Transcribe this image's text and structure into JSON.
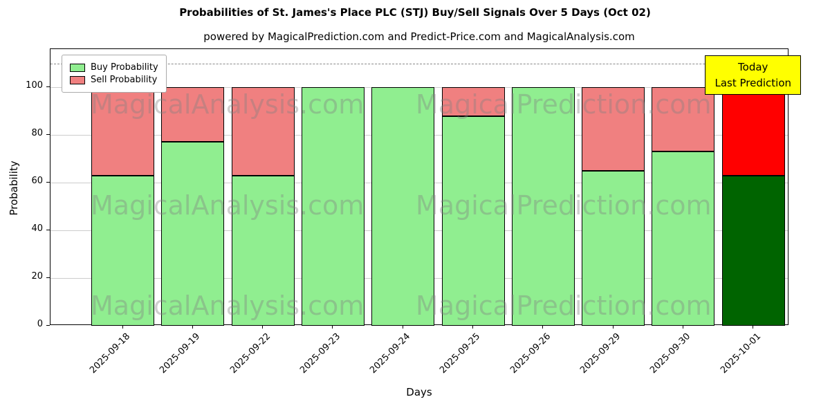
{
  "chart_data": {
    "type": "bar",
    "stacked": true,
    "title": "Probabilities of St. James's Place PLC (STJ) Buy/Sell Signals Over 5 Days (Oct 02)",
    "subtitle": "powered by MagicalPrediction.com and Predict-Price.com and MagicalAnalysis.com",
    "xlabel": "Days",
    "ylabel": "Probability",
    "categories": [
      "2025-09-18",
      "2025-09-19",
      "2025-09-22",
      "2025-09-23",
      "2025-09-24",
      "2025-09-25",
      "2025-09-26",
      "2025-09-29",
      "2025-09-30",
      "2025-10-01"
    ],
    "series": [
      {
        "name": "Buy Probability",
        "color": "#90EE90",
        "values": [
          63,
          77,
          63,
          100,
          100,
          88,
          100,
          65,
          73,
          63
        ],
        "bar_colors": [
          "#90EE90",
          "#90EE90",
          "#90EE90",
          "#90EE90",
          "#90EE90",
          "#90EE90",
          "#90EE90",
          "#90EE90",
          "#90EE90",
          "#006400"
        ]
      },
      {
        "name": "Sell Probability",
        "color": "#F08080",
        "values": [
          37,
          23,
          37,
          0,
          0,
          12,
          0,
          35,
          27,
          37
        ],
        "bar_colors": [
          "#F08080",
          "#F08080",
          "#F08080",
          "#F08080",
          "#F08080",
          "#F08080",
          "#F08080",
          "#F08080",
          "#F08080",
          "#FF0000"
        ]
      }
    ],
    "ylim": [
      0,
      116
    ],
    "yticks": [
      0,
      20,
      40,
      60,
      80,
      100
    ],
    "dashed_gridline_y": 110,
    "grid": "horizontal",
    "legend_position": "top-left",
    "annotation": {
      "lines": [
        "Today",
        "Last Prediction"
      ],
      "bg_color": "#FFFF00"
    },
    "watermarks": [
      "MagicalAnalysis.com",
      "MagicalPrediction.com"
    ]
  }
}
